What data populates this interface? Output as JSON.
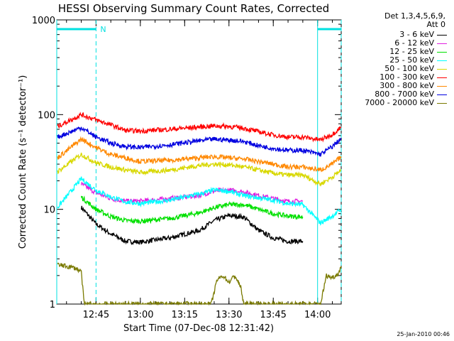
{
  "chart_data": {
    "type": "line",
    "title": "HESSI Observing Summary Count Rates, Corrected",
    "xlabel": "Start Time (07-Dec-08 12:31:42)",
    "ylabel": "Corrected Count Rate (s⁻¹ detector⁻¹)",
    "yscale": "log",
    "ylim": [
      1,
      1000
    ],
    "yticks": [
      "1",
      "10",
      "100",
      "1000"
    ],
    "xlim": [
      "12:31:42",
      "14:08:00"
    ],
    "xticks": [
      "12:45",
      "13:00",
      "13:15",
      "13:30",
      "13:45",
      "14:00"
    ],
    "legend_title": [
      "Det 1,3,4,5,6,9,",
      "Att 0"
    ],
    "legend_position": "right",
    "night_start_times": [
      "12:31:42",
      "14:00"
    ],
    "night_end_times": [
      "12:45",
      "14:08"
    ],
    "saa_flag_label": "N",
    "series": [
      {
        "name": "3 - 6 keV",
        "color": "#000000",
        "x": [
          "12:40",
          "12:45",
          "12:50",
          "12:55",
          "13:00",
          "13:10",
          "13:20",
          "13:25",
          "13:30",
          "13:35",
          "13:40",
          "13:45",
          "13:50",
          "13:55"
        ],
        "y": [
          10.5,
          7,
          5.5,
          4.6,
          4.5,
          5,
          6,
          7.6,
          8.6,
          8.3,
          6,
          5,
          4.6,
          4.6
        ]
      },
      {
        "name": "6 - 12 keV",
        "color": "#e020e0",
        "x": [
          "12:40",
          "12:45",
          "12:50",
          "12:55",
          "13:00",
          "13:10",
          "13:20",
          "13:25",
          "13:30",
          "13:35",
          "13:40",
          "13:45",
          "13:50",
          "13:55"
        ],
        "y": [
          18.5,
          15,
          13,
          12.2,
          12.2,
          13,
          14,
          15.6,
          16,
          15.3,
          14,
          13,
          12.1,
          12.2
        ]
      },
      {
        "name": "12 - 25 keV",
        "color": "#00e000",
        "x": [
          "12:40",
          "12:45",
          "12:50",
          "12:55",
          "13:00",
          "13:10",
          "13:20",
          "13:25",
          "13:30",
          "13:35",
          "13:40",
          "13:45",
          "13:50",
          "13:55"
        ],
        "y": [
          13.5,
          10,
          8.4,
          7.6,
          7.5,
          8,
          9.2,
          10.4,
          11.2,
          11.2,
          10,
          9,
          8.5,
          8.3
        ]
      },
      {
        "name": "25 - 50 keV",
        "color": "#00ffff",
        "x": [
          "12:32",
          "12:40",
          "12:45",
          "12:50",
          "12:55",
          "13:00",
          "13:10",
          "13:20",
          "13:25",
          "13:30",
          "13:35",
          "13:40",
          "13:45",
          "13:50",
          "13:55",
          "14:01",
          "14:05",
          "14:08"
        ],
        "y": [
          10.5,
          21,
          16,
          13.5,
          12,
          11.5,
          12.5,
          14.5,
          16,
          15.5,
          14,
          13.2,
          12.5,
          11.5,
          11.2,
          7.2,
          8.5,
          10
        ]
      },
      {
        "name": "50 - 100 keV",
        "color": "#d8d800",
        "x": [
          "12:32",
          "12:40",
          "12:45",
          "12:50",
          "12:55",
          "13:00",
          "13:10",
          "13:20",
          "13:25",
          "13:30",
          "13:35",
          "13:40",
          "13:45",
          "13:50",
          "13:55",
          "14:01",
          "14:05",
          "14:08"
        ],
        "y": [
          25,
          38,
          31,
          28,
          26,
          24.5,
          26,
          29,
          30,
          29.5,
          28,
          26,
          24,
          23,
          23,
          18.5,
          22,
          26
        ]
      },
      {
        "name": "100 - 300 keV",
        "color": "#ff0000",
        "x": [
          "12:32",
          "12:40",
          "12:45",
          "12:50",
          "12:55",
          "13:00",
          "13:10",
          "13:20",
          "13:25",
          "13:30",
          "13:35",
          "13:40",
          "13:45",
          "13:50",
          "13:55",
          "14:01",
          "14:05",
          "14:08"
        ],
        "y": [
          75,
          100,
          88,
          78,
          68,
          67,
          70,
          74,
          76,
          75,
          72,
          66,
          61,
          58,
          58,
          54,
          62,
          74
        ]
      },
      {
        "name": "300 - 800 keV",
        "color": "#ff8800",
        "x": [
          "12:32",
          "12:40",
          "12:45",
          "12:50",
          "12:55",
          "13:00",
          "13:10",
          "13:20",
          "13:25",
          "13:30",
          "13:35",
          "13:40",
          "13:45",
          "13:50",
          "13:55",
          "14:01",
          "14:05",
          "14:08"
        ],
        "y": [
          35,
          55,
          45,
          38,
          35,
          32,
          33,
          35,
          36,
          35,
          34,
          32,
          30,
          28,
          28,
          26,
          30,
          36
        ]
      },
      {
        "name": "800 - 7000 keV",
        "color": "#0000e0",
        "x": [
          "12:32",
          "12:40",
          "12:45",
          "12:50",
          "12:55",
          "13:00",
          "13:10",
          "13:20",
          "13:25",
          "13:30",
          "13:35",
          "13:40",
          "13:45",
          "13:50",
          "13:55",
          "14:01",
          "14:05",
          "14:08"
        ],
        "y": [
          58,
          73,
          58,
          50,
          46,
          45,
          48,
          53,
          55,
          54,
          52,
          47,
          44,
          42,
          42,
          38,
          46,
          56
        ]
      },
      {
        "name": "7000 - 20000 keV",
        "color": "#7a7a00",
        "x": [
          "12:32",
          "12:35",
          "12:38",
          "12:40",
          "12:41",
          "13:24",
          "13:26",
          "13:28",
          "13:30",
          "13:32",
          "13:34",
          "13:35",
          "14:01",
          "14:03",
          "14:05",
          "14:07",
          "14:08"
        ],
        "y": [
          2.6,
          2.5,
          2.4,
          2.2,
          1,
          1,
          1.8,
          2,
          1.7,
          2,
          1.5,
          1,
          1,
          2,
          1.9,
          2.1,
          2.5
        ]
      }
    ],
    "stamp": "25-Jan-2010 00:46"
  }
}
